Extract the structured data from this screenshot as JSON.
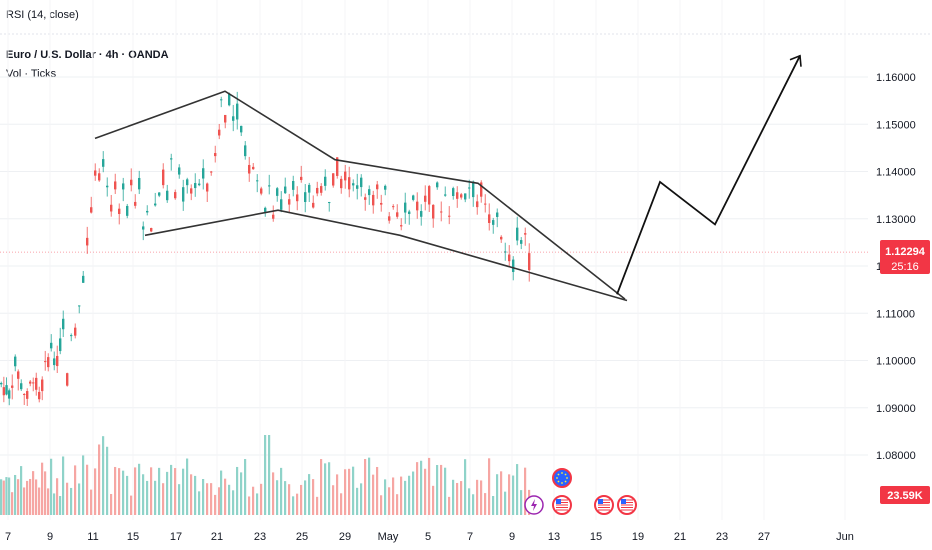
{
  "indicator_label": "RSI (14, close)",
  "symbol_title": "Euro / U.S. Dollar · 4h · OANDA",
  "volume_label": "Vol · Ticks",
  "price_badge": {
    "price": "1.12294",
    "countdown": "25:16",
    "color": "#f23645"
  },
  "volume_badge": {
    "text": "23.59K",
    "color": "#f23645"
  },
  "event_icons": [
    "euro-flag-icon",
    "lightning-icon",
    "us-flag-icon",
    "us-flag-icon",
    "us-flag-icon",
    "us-flag-icon"
  ],
  "colors": {
    "up": "#26a69a",
    "down": "#ef5350",
    "up_vol": "#8fd3c9",
    "down_vol": "#f6a6a3",
    "drawing": "#333333"
  },
  "chart_data": {
    "type": "candlestick",
    "y_ticks": [
      "1.16000",
      "1.15000",
      "1.14000",
      "1.13000",
      "1.12000",
      "1.11000",
      "1.10000",
      "1.09000",
      "1.08000"
    ],
    "x_ticks": [
      "7",
      "9",
      "11",
      "15",
      "17",
      "21",
      "23",
      "25",
      "29",
      "May",
      "5",
      "7",
      "9",
      "13",
      "15",
      "19",
      "21",
      "23",
      "27",
      "Jun"
    ],
    "current_price": 1.12294,
    "price_path": [
      [
        0,
        1.095
      ],
      [
        8,
        1.093
      ],
      [
        14,
        1.099
      ],
      [
        20,
        1.095
      ],
      [
        26,
        1.092
      ],
      [
        32,
        1.097
      ],
      [
        38,
        1.092
      ],
      [
        44,
        1.098
      ],
      [
        50,
        1.103
      ],
      [
        56,
        1.099
      ],
      [
        62,
        1.108
      ],
      [
        66,
        1.096
      ],
      [
        70,
        1.104
      ],
      [
        74,
        1.107
      ],
      [
        78,
        1.113
      ],
      [
        82,
        1.118
      ],
      [
        86,
        1.125
      ],
      [
        90,
        1.133
      ],
      [
        94,
        1.141
      ],
      [
        98,
        1.138
      ],
      [
        102,
        1.141
      ],
      [
        106,
        1.137
      ],
      [
        110,
        1.131
      ],
      [
        114,
        1.136
      ],
      [
        118,
        1.131
      ],
      [
        122,
        1.138
      ],
      [
        126,
        1.132
      ],
      [
        130,
        1.139
      ],
      [
        134,
        1.134
      ],
      [
        138,
        1.137
      ],
      [
        142,
        1.129
      ],
      [
        146,
        1.133
      ],
      [
        150,
        1.128
      ],
      [
        154,
        1.133
      ],
      [
        158,
        1.136
      ],
      [
        162,
        1.139
      ],
      [
        166,
        1.135
      ],
      [
        170,
        1.141
      ],
      [
        174,
        1.136
      ],
      [
        178,
        1.139
      ],
      [
        182,
        1.135
      ],
      [
        186,
        1.138
      ],
      [
        190,
        1.136
      ],
      [
        194,
        1.138
      ],
      [
        198,
        1.137
      ],
      [
        202,
        1.139
      ],
      [
        206,
        1.136
      ],
      [
        210,
        1.141
      ],
      [
        214,
        1.142
      ],
      [
        218,
        1.149
      ],
      [
        220,
        1.155
      ],
      [
        224,
        1.152
      ],
      [
        228,
        1.156
      ],
      [
        232,
        1.151
      ],
      [
        236,
        1.153
      ],
      [
        240,
        1.148
      ],
      [
        244,
        1.145
      ],
      [
        248,
        1.141
      ],
      [
        252,
        1.142
      ],
      [
        256,
        1.138
      ],
      [
        260,
        1.137
      ],
      [
        264,
        1.133
      ],
      [
        268,
        1.137
      ],
      [
        272,
        1.131
      ],
      [
        276,
        1.135
      ],
      [
        280,
        1.133
      ],
      [
        284,
        1.137
      ],
      [
        288,
        1.135
      ],
      [
        292,
        1.138
      ],
      [
        296,
        1.134
      ],
      [
        300,
        1.137
      ],
      [
        304,
        1.134
      ],
      [
        308,
        1.136
      ],
      [
        312,
        1.133
      ],
      [
        316,
        1.137
      ],
      [
        320,
        1.135
      ],
      [
        324,
        1.138
      ],
      [
        328,
        1.135
      ],
      [
        332,
        1.139
      ],
      [
        336,
        1.141
      ],
      [
        340,
        1.138
      ],
      [
        344,
        1.14
      ],
      [
        348,
        1.137
      ],
      [
        352,
        1.139
      ],
      [
        356,
        1.136
      ],
      [
        360,
        1.138
      ],
      [
        364,
        1.135
      ],
      [
        368,
        1.137
      ],
      [
        372,
        1.134
      ],
      [
        376,
        1.136
      ],
      [
        380,
        1.132
      ],
      [
        384,
        1.135
      ],
      [
        388,
        1.131
      ],
      [
        392,
        1.134
      ],
      [
        396,
        1.132
      ],
      [
        400,
        1.13
      ],
      [
        404,
        1.133
      ],
      [
        408,
        1.131
      ],
      [
        412,
        1.135
      ],
      [
        416,
        1.133
      ],
      [
        420,
        1.131
      ],
      [
        424,
        1.134
      ],
      [
        428,
        1.135
      ],
      [
        432,
        1.131
      ],
      [
        436,
        1.136
      ],
      [
        440,
        1.133
      ],
      [
        444,
        1.135
      ],
      [
        448,
        1.132
      ],
      [
        452,
        1.136
      ],
      [
        456,
        1.134
      ],
      [
        460,
        1.136
      ],
      [
        464,
        1.135
      ],
      [
        468,
        1.137
      ],
      [
        472,
        1.136
      ],
      [
        476,
        1.134
      ],
      [
        480,
        1.136
      ],
      [
        484,
        1.132
      ],
      [
        488,
        1.13
      ],
      [
        492,
        1.128
      ],
      [
        496,
        1.131
      ],
      [
        500,
        1.127
      ],
      [
        504,
        1.122
      ],
      [
        508,
        1.121
      ],
      [
        512,
        1.12
      ],
      [
        516,
        1.127
      ],
      [
        520,
        1.125
      ],
      [
        524,
        1.127
      ],
      [
        528,
        1.121
      ],
      [
        532,
        1.123
      ]
    ],
    "drawings": [
      {
        "name": "upper-wedge-line",
        "points": [
          [
            95,
            1.147
          ],
          [
            225,
            1.157
          ],
          [
            335,
            1.1425
          ],
          [
            478,
            1.1375
          ],
          [
            625,
            1.113
          ]
        ]
      },
      {
        "name": "lower-wedge-line",
        "points": [
          [
            145,
            1.1265
          ],
          [
            278,
            1.1318
          ],
          [
            400,
            1.1265
          ],
          [
            627,
            1.1127
          ]
        ]
      },
      {
        "name": "projection-zigzag",
        "points": [
          [
            617,
            1.114
          ],
          [
            660,
            1.1378
          ],
          [
            715,
            1.1288
          ],
          [
            800,
            1.1645
          ]
        ]
      }
    ]
  }
}
